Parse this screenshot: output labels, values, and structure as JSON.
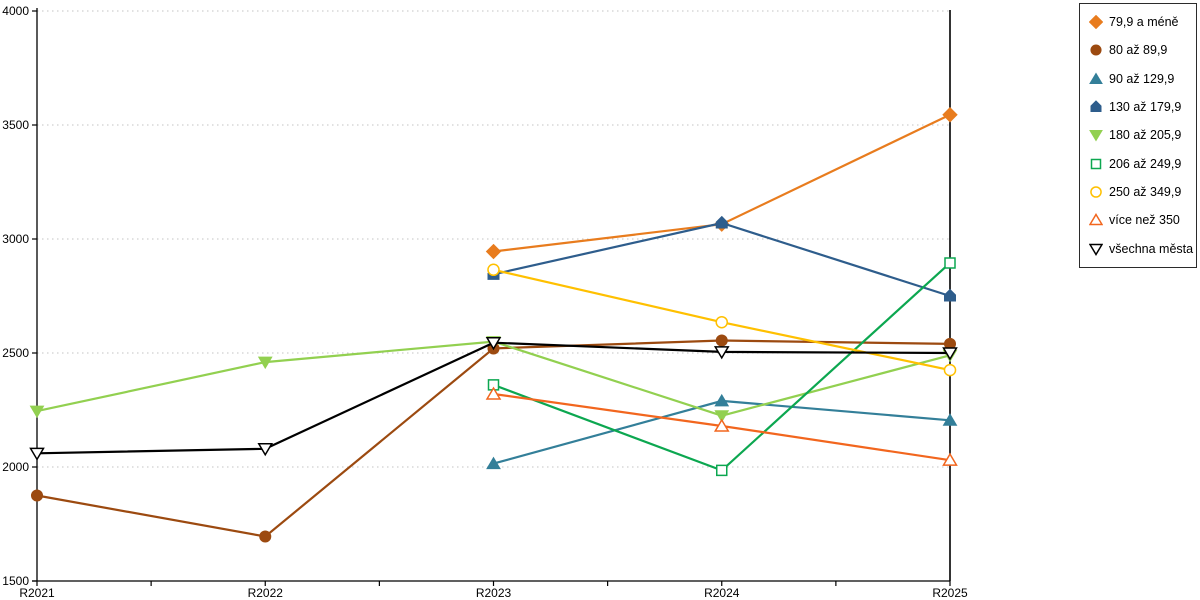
{
  "chart_data": {
    "type": "line",
    "title": "",
    "xlabel": "",
    "ylabel": "",
    "categories": [
      "R2021",
      "R2022",
      "R2023",
      "R2024",
      "R2025"
    ],
    "series": [
      {
        "name": "79,9 a méně",
        "color": "#E87C1E",
        "marker": "diamond",
        "marker_style": "solid",
        "values": [
          null,
          null,
          2945,
          3065,
          3545
        ]
      },
      {
        "name": "80 až 89,9",
        "color": "#9C4A10",
        "marker": "circle",
        "marker_style": "solid",
        "values": [
          1875,
          1695,
          2520,
          2555,
          2540
        ]
      },
      {
        "name": "90 až 129,9",
        "color": "#337F99",
        "marker": "triangle-up",
        "marker_style": "solid",
        "values": [
          null,
          null,
          2015,
          2290,
          2205
        ]
      },
      {
        "name": "130 až 179,9",
        "color": "#2E5D8C",
        "marker": "pentagon",
        "marker_style": "solid",
        "values": [
          null,
          null,
          2845,
          3070,
          2750
        ]
      },
      {
        "name": "180 až 205,9",
        "color": "#92D050",
        "marker": "triangle-down",
        "marker_style": "solid",
        "values": [
          2245,
          2460,
          2550,
          2225,
          2490
        ]
      },
      {
        "name": "206 až 249,9",
        "color": "#0CA750",
        "marker": "square",
        "marker_style": "open",
        "values": [
          null,
          null,
          2360,
          1985,
          2895
        ]
      },
      {
        "name": "250 až 349,9",
        "color": "#FFC000",
        "marker": "circle",
        "marker_style": "open",
        "values": [
          null,
          null,
          2865,
          2635,
          2425
        ]
      },
      {
        "name": "více než 350",
        "color": "#F2661E",
        "marker": "triangle-up",
        "marker_style": "open",
        "values": [
          null,
          null,
          2320,
          2180,
          2030
        ]
      },
      {
        "name": "všechna města",
        "color": "#000000",
        "marker": "triangle-down",
        "marker_style": "open",
        "values": [
          2060,
          2080,
          2545,
          2505,
          2500
        ]
      }
    ],
    "ylim": [
      1500,
      4000
    ],
    "yticks": [
      1500,
      2000,
      2500,
      3000,
      3500,
      4000
    ],
    "grid": "horizontal-dotted",
    "grid_color": "#C3C3C3",
    "axis_color": "#000000",
    "legend_position": "right"
  }
}
